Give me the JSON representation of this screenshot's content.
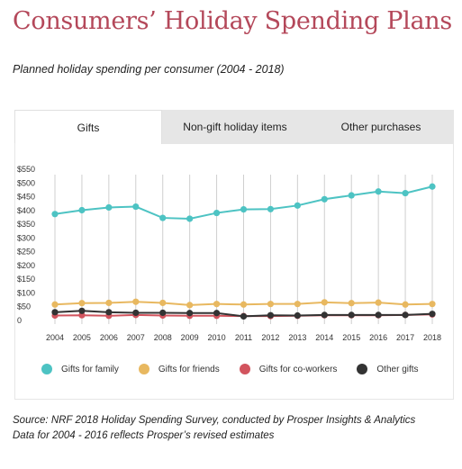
{
  "page": {
    "title": "Consumers’ Holiday Spending Plans",
    "subtitle": "Planned holiday spending per consumer (2004 - 2018)",
    "source_line1": "Source: NRF 2018 Holiday Spending Survey, conducted by Prosper Insights & Analytics",
    "source_line2": "Data for 2004 - 2016 reflects Prosper’s revised estimates"
  },
  "tabs": [
    {
      "label": "Gifts",
      "active": true
    },
    {
      "label": "Non-gift holiday items",
      "active": false
    },
    {
      "label": "Other purchases",
      "active": false
    }
  ],
  "colors": {
    "title": "#b4485a",
    "family": "#4dc3c3",
    "friends": "#e8b860",
    "coworkers": "#d2545e",
    "other": "#333333",
    "grid": "#cfcfcf"
  },
  "chart_data": {
    "type": "line",
    "x": [
      "2004",
      "2005",
      "2006",
      "2007",
      "2008",
      "2009",
      "2010",
      "2011",
      "2012",
      "2013",
      "2014",
      "2015",
      "2016",
      "2017",
      "2018"
    ],
    "y_ticks": [
      "$550",
      "$500",
      "$450",
      "$400",
      "$350",
      "$300",
      "$250",
      "$200",
      "$150",
      "$100",
      "$50",
      "0"
    ],
    "ylim": [
      0,
      550
    ],
    "grid": "vertical",
    "legend_position": "bottom",
    "series": [
      {
        "name": "Gifts for family",
        "color_key": "family",
        "values": [
          387,
          401,
          411,
          414,
          373,
          370,
          391,
          404,
          405,
          418,
          441,
          455,
          469,
          463,
          487
        ]
      },
      {
        "name": "Gifts for friends",
        "color_key": "friends",
        "values": [
          58,
          63,
          64,
          68,
          64,
          56,
          60,
          58,
          60,
          60,
          66,
          63,
          65,
          58,
          60
        ]
      },
      {
        "name": "Gifts for co-workers",
        "color_key": "coworkers",
        "values": [
          18,
          19,
          17,
          20,
          18,
          17,
          17,
          16,
          16,
          17,
          19,
          19,
          19,
          20,
          22
        ]
      },
      {
        "name": "Other gifts",
        "color_key": "other",
        "values": [
          30,
          35,
          30,
          28,
          28,
          27,
          27,
          15,
          19,
          18,
          20,
          20,
          20,
          20,
          24
        ]
      }
    ]
  }
}
